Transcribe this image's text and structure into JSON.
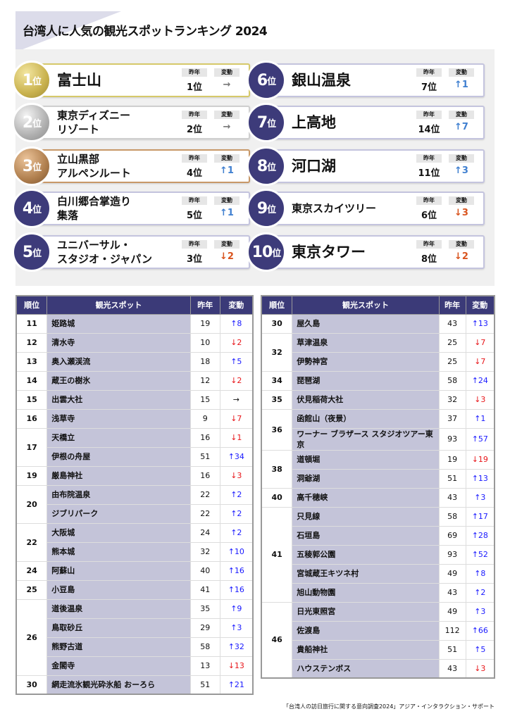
{
  "title": "台湾人に人気の観光スポットランキング 2024",
  "labels": {
    "prev": "昨年",
    "change": "変動",
    "rank_suffix": "位"
  },
  "colors": {
    "navy": "#3d3b7a",
    "gold": "#c9b24e",
    "silver": "#b0b0b0",
    "bronze": "#b07f4e",
    "up": "#1a1aff",
    "down": "#e8161a"
  },
  "top10": [
    {
      "rank": "1",
      "name": "富士山",
      "prev": "1位",
      "change": "→",
      "dir": "same",
      "medal": "gold"
    },
    {
      "rank": "2",
      "name": "東京ディズニー\nリゾート",
      "prev": "2位",
      "change": "→",
      "dir": "same",
      "medal": "silver"
    },
    {
      "rank": "3",
      "name": "立山黒部\nアルペンルート",
      "prev": "4位",
      "change": "↑1",
      "dir": "up",
      "medal": "bronze"
    },
    {
      "rank": "4",
      "name": "白川郷合掌造り\n集落",
      "prev": "5位",
      "change": "↑1",
      "dir": "up"
    },
    {
      "rank": "5",
      "name": "ユニバーサル・\nスタジオ・ジャパン",
      "prev": "3位",
      "change": "↓2",
      "dir": "down"
    },
    {
      "rank": "6",
      "name": "銀山温泉",
      "prev": "7位",
      "change": "↑1",
      "dir": "up"
    },
    {
      "rank": "7",
      "name": "上高地",
      "prev": "14位",
      "change": "↑7",
      "dir": "up"
    },
    {
      "rank": "8",
      "name": "河口湖",
      "prev": "11位",
      "change": "↑3",
      "dir": "up"
    },
    {
      "rank": "9",
      "name": "東京スカイツリー",
      "prev": "6位",
      "change": "↓3",
      "dir": "down"
    },
    {
      "rank": "10",
      "name": "東京タワー",
      "prev": "8位",
      "change": "↓2",
      "dir": "down"
    }
  ],
  "table_headers": [
    "順位",
    "観光スポット",
    "昨年",
    "変動"
  ],
  "tables": [
    [
      {
        "rank": "11",
        "rows": [
          {
            "name": "姫路城",
            "prev": "19",
            "change": "↑8",
            "dir": "up"
          }
        ]
      },
      {
        "rank": "12",
        "rows": [
          {
            "name": "清水寺",
            "prev": "10",
            "change": "↓2",
            "dir": "down"
          }
        ]
      },
      {
        "rank": "13",
        "rows": [
          {
            "name": "奥入瀬渓流",
            "prev": "18",
            "change": "↑5",
            "dir": "up"
          }
        ]
      },
      {
        "rank": "14",
        "rows": [
          {
            "name": "蔵王の樹氷",
            "prev": "12",
            "change": "↓2",
            "dir": "down"
          }
        ]
      },
      {
        "rank": "15",
        "rows": [
          {
            "name": "出雲大社",
            "prev": "15",
            "change": "→",
            "dir": "same"
          }
        ]
      },
      {
        "rank": "16",
        "rows": [
          {
            "name": "浅草寺",
            "prev": "9",
            "change": "↓7",
            "dir": "down"
          }
        ]
      },
      {
        "rank": "17",
        "rows": [
          {
            "name": "天橋立",
            "prev": "16",
            "change": "↓1",
            "dir": "down"
          },
          {
            "name": "伊根の舟屋",
            "prev": "51",
            "change": "↑34",
            "dir": "up"
          }
        ]
      },
      {
        "rank": "19",
        "rows": [
          {
            "name": "厳島神社",
            "prev": "16",
            "change": "↓3",
            "dir": "down"
          }
        ]
      },
      {
        "rank": "20",
        "rows": [
          {
            "name": "由布院温泉",
            "prev": "22",
            "change": "↑2",
            "dir": "up"
          },
          {
            "name": "ジブリパーク",
            "prev": "22",
            "change": "↑2",
            "dir": "up"
          }
        ]
      },
      {
        "rank": "22",
        "rows": [
          {
            "name": "大阪城",
            "prev": "24",
            "change": "↑2",
            "dir": "up"
          },
          {
            "name": "熊本城",
            "prev": "32",
            "change": "↑10",
            "dir": "up"
          }
        ]
      },
      {
        "rank": "24",
        "rows": [
          {
            "name": "阿蘇山",
            "prev": "40",
            "change": "↑16",
            "dir": "up"
          }
        ]
      },
      {
        "rank": "25",
        "rows": [
          {
            "name": "小豆島",
            "prev": "41",
            "change": "↑16",
            "dir": "up"
          }
        ]
      },
      {
        "rank": "26",
        "rows": [
          {
            "name": "道後温泉",
            "prev": "35",
            "change": "↑9",
            "dir": "up"
          },
          {
            "name": "鳥取砂丘",
            "prev": "29",
            "change": "↑3",
            "dir": "up"
          },
          {
            "name": "熊野古道",
            "prev": "58",
            "change": "↑32",
            "dir": "up"
          },
          {
            "name": "金閣寺",
            "prev": "13",
            "change": "↓13",
            "dir": "down"
          }
        ]
      },
      {
        "rank": "30",
        "rows": [
          {
            "name": "網走流氷観光砕氷船 おーろら",
            "prev": "51",
            "change": "↑21",
            "dir": "up"
          }
        ]
      }
    ],
    [
      {
        "rank": "30",
        "rows": [
          {
            "name": "屋久島",
            "prev": "43",
            "change": "↑13",
            "dir": "up"
          }
        ]
      },
      {
        "rank": "32",
        "rows": [
          {
            "name": "草津温泉",
            "prev": "25",
            "change": "↓7",
            "dir": "down"
          },
          {
            "name": "伊勢神宮",
            "prev": "25",
            "change": "↓7",
            "dir": "down"
          }
        ]
      },
      {
        "rank": "34",
        "rows": [
          {
            "name": "琵琶湖",
            "prev": "58",
            "change": "↑24",
            "dir": "up"
          }
        ]
      },
      {
        "rank": "35",
        "rows": [
          {
            "name": "伏見稲荷大社",
            "prev": "32",
            "change": "↓3",
            "dir": "down"
          }
        ]
      },
      {
        "rank": "36",
        "rows": [
          {
            "name": "函館山（夜景）",
            "prev": "37",
            "change": "↑1",
            "dir": "up"
          },
          {
            "name": "ワーナー ブラザース スタジオツアー東京",
            "prev": "93",
            "change": "↑57",
            "dir": "up"
          }
        ]
      },
      {
        "rank": "38",
        "rows": [
          {
            "name": "道頓堀",
            "prev": "19",
            "change": "↓19",
            "dir": "down"
          },
          {
            "name": "洞爺湖",
            "prev": "51",
            "change": "↑13",
            "dir": "up"
          }
        ]
      },
      {
        "rank": "40",
        "rows": [
          {
            "name": "高千穂峡",
            "prev": "43",
            "change": "↑3",
            "dir": "up"
          }
        ]
      },
      {
        "rank": "41",
        "rows": [
          {
            "name": "只見線",
            "prev": "58",
            "change": "↑17",
            "dir": "up"
          },
          {
            "name": "石垣島",
            "prev": "69",
            "change": "↑28",
            "dir": "up"
          },
          {
            "name": "五稜郭公園",
            "prev": "93",
            "change": "↑52",
            "dir": "up"
          },
          {
            "name": "宮城蔵王キツネ村",
            "prev": "49",
            "change": "↑8",
            "dir": "up"
          },
          {
            "name": "旭山動物園",
            "prev": "43",
            "change": "↑2",
            "dir": "up"
          }
        ]
      },
      {
        "rank": "46",
        "rows": [
          {
            "name": "日光東照宮",
            "prev": "49",
            "change": "↑3",
            "dir": "up"
          },
          {
            "name": "佐渡島",
            "prev": "112",
            "change": "↑66",
            "dir": "up"
          },
          {
            "name": "貴船神社",
            "prev": "51",
            "change": "↑5",
            "dir": "up"
          },
          {
            "name": "ハウステンボス",
            "prev": "43",
            "change": "↓3",
            "dir": "down"
          }
        ]
      }
    ]
  ],
  "footer": "「台湾人の訪日旅行に関する意向調査2024」アジア・インタラクション・サポート"
}
